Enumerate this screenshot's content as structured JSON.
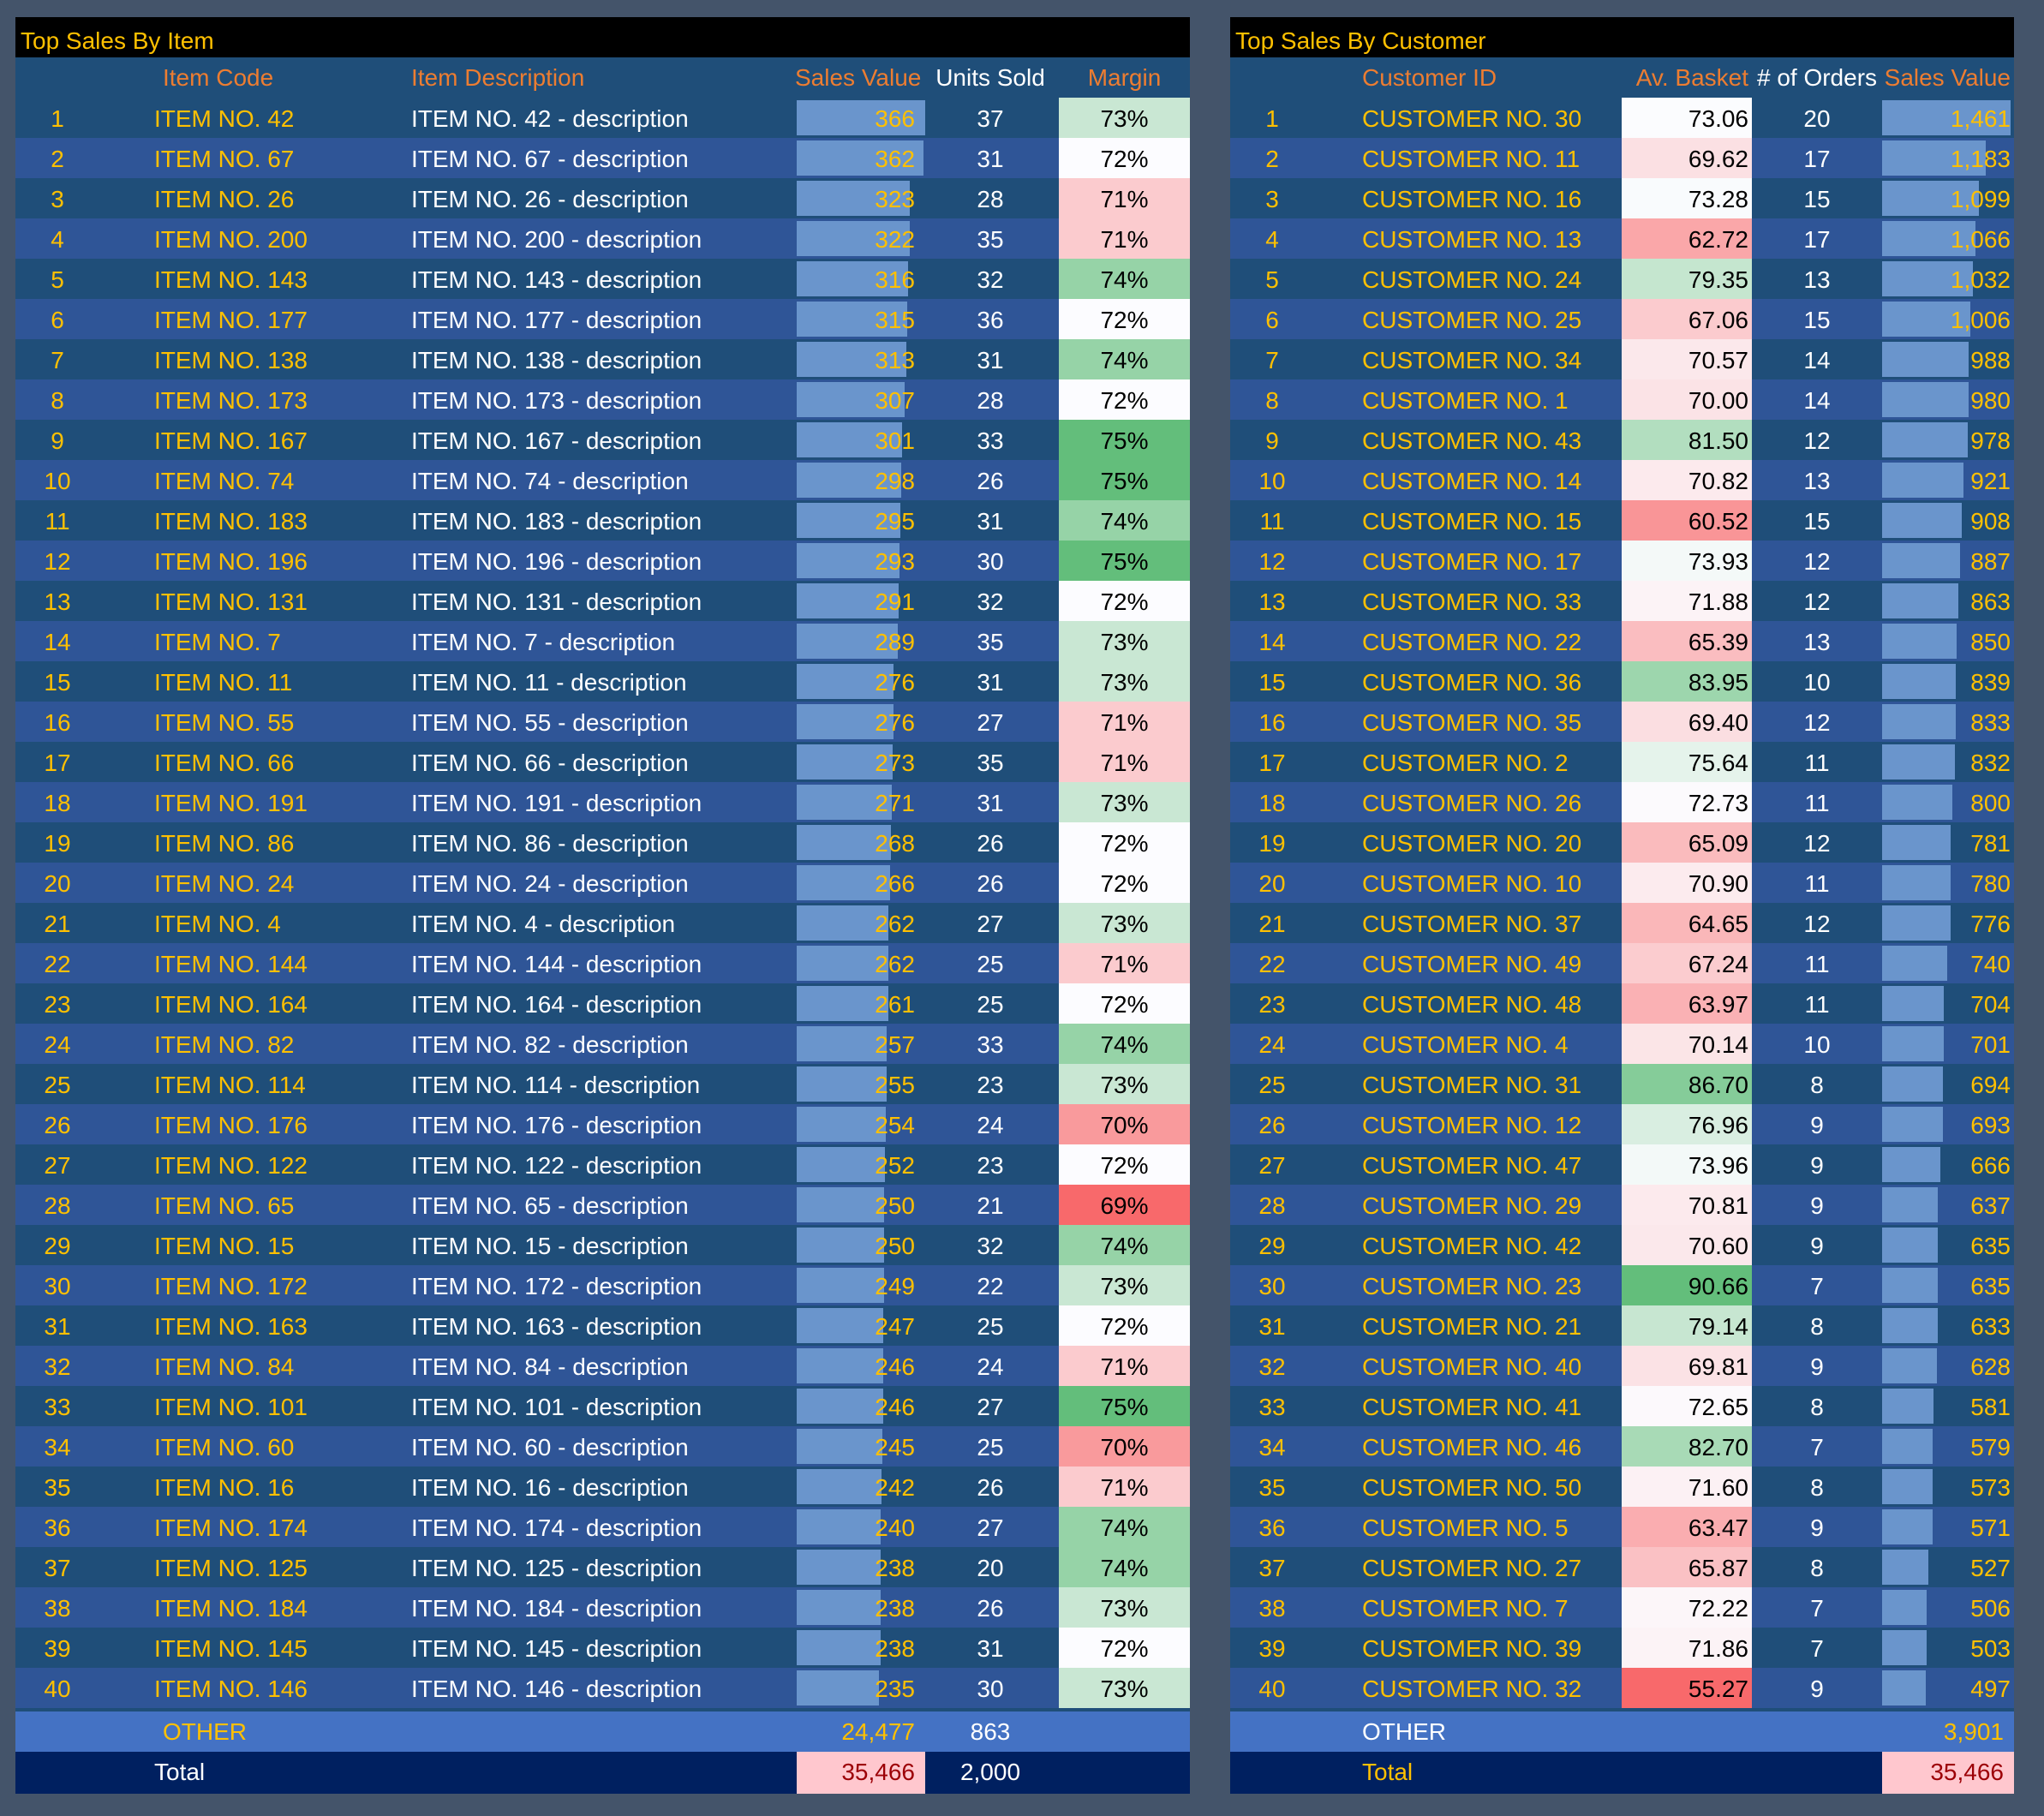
{
  "colors": {
    "background": "#44546a",
    "panel": "#1f4e79",
    "stripe": "#2f5597",
    "title_bar": "#000000",
    "title_text": "#ffc000",
    "header_text": "#ed7d31",
    "data_bar": "#6a95cc",
    "other_row": "#4472c4",
    "total_row": "#002060",
    "total_highlight": "#ffc7ce",
    "scale_low": "#f8696b",
    "scale_mid": "#fcfcff",
    "scale_high": "#63be7b"
  },
  "items_table": {
    "title": "Top Sales By Item",
    "columns": {
      "rank": "",
      "code": "Item Code",
      "description": "Item Description",
      "sales_value": "Sales Value",
      "units_sold": "Units Sold",
      "margin": "Margin"
    },
    "rows": [
      {
        "rank": "1",
        "code": "ITEM NO. 42",
        "description": "ITEM NO. 42 - description",
        "sales_value": "366",
        "units_sold": "37",
        "margin": "73%"
      },
      {
        "rank": "2",
        "code": "ITEM NO. 67",
        "description": "ITEM NO. 67 - description",
        "sales_value": "362",
        "units_sold": "31",
        "margin": "72%"
      },
      {
        "rank": "3",
        "code": "ITEM NO. 26",
        "description": "ITEM NO. 26 - description",
        "sales_value": "323",
        "units_sold": "28",
        "margin": "71%"
      },
      {
        "rank": "4",
        "code": "ITEM NO. 200",
        "description": "ITEM NO. 200 - description",
        "sales_value": "322",
        "units_sold": "35",
        "margin": "71%"
      },
      {
        "rank": "5",
        "code": "ITEM NO. 143",
        "description": "ITEM NO. 143 - description",
        "sales_value": "316",
        "units_sold": "32",
        "margin": "74%"
      },
      {
        "rank": "6",
        "code": "ITEM NO. 177",
        "description": "ITEM NO. 177 - description",
        "sales_value": "315",
        "units_sold": "36",
        "margin": "72%"
      },
      {
        "rank": "7",
        "code": "ITEM NO. 138",
        "description": "ITEM NO. 138 - description",
        "sales_value": "313",
        "units_sold": "31",
        "margin": "74%"
      },
      {
        "rank": "8",
        "code": "ITEM NO. 173",
        "description": "ITEM NO. 173 - description",
        "sales_value": "307",
        "units_sold": "28",
        "margin": "72%"
      },
      {
        "rank": "9",
        "code": "ITEM NO. 167",
        "description": "ITEM NO. 167 - description",
        "sales_value": "301",
        "units_sold": "33",
        "margin": "75%"
      },
      {
        "rank": "10",
        "code": "ITEM NO. 74",
        "description": "ITEM NO. 74 - description",
        "sales_value": "298",
        "units_sold": "26",
        "margin": "75%"
      },
      {
        "rank": "11",
        "code": "ITEM NO. 183",
        "description": "ITEM NO. 183 - description",
        "sales_value": "295",
        "units_sold": "31",
        "margin": "74%"
      },
      {
        "rank": "12",
        "code": "ITEM NO. 196",
        "description": "ITEM NO. 196 - description",
        "sales_value": "293",
        "units_sold": "30",
        "margin": "75%"
      },
      {
        "rank": "13",
        "code": "ITEM NO. 131",
        "description": "ITEM NO. 131 - description",
        "sales_value": "291",
        "units_sold": "32",
        "margin": "72%"
      },
      {
        "rank": "14",
        "code": "ITEM NO. 7",
        "description": "ITEM NO. 7 - description",
        "sales_value": "289",
        "units_sold": "35",
        "margin": "73%"
      },
      {
        "rank": "15",
        "code": "ITEM NO. 11",
        "description": "ITEM NO. 11 - description",
        "sales_value": "276",
        "units_sold": "31",
        "margin": "73%"
      },
      {
        "rank": "16",
        "code": "ITEM NO. 55",
        "description": "ITEM NO. 55 - description",
        "sales_value": "276",
        "units_sold": "27",
        "margin": "71%"
      },
      {
        "rank": "17",
        "code": "ITEM NO. 66",
        "description": "ITEM NO. 66 - description",
        "sales_value": "273",
        "units_sold": "35",
        "margin": "71%"
      },
      {
        "rank": "18",
        "code": "ITEM NO. 191",
        "description": "ITEM NO. 191 - description",
        "sales_value": "271",
        "units_sold": "31",
        "margin": "73%"
      },
      {
        "rank": "19",
        "code": "ITEM NO. 86",
        "description": "ITEM NO. 86 - description",
        "sales_value": "268",
        "units_sold": "26",
        "margin": "72%"
      },
      {
        "rank": "20",
        "code": "ITEM NO. 24",
        "description": "ITEM NO. 24 - description",
        "sales_value": "266",
        "units_sold": "26",
        "margin": "72%"
      },
      {
        "rank": "21",
        "code": "ITEM NO. 4",
        "description": "ITEM NO. 4 - description",
        "sales_value": "262",
        "units_sold": "27",
        "margin": "73%"
      },
      {
        "rank": "22",
        "code": "ITEM NO. 144",
        "description": "ITEM NO. 144 - description",
        "sales_value": "262",
        "units_sold": "25",
        "margin": "71%"
      },
      {
        "rank": "23",
        "code": "ITEM NO. 164",
        "description": "ITEM NO. 164 - description",
        "sales_value": "261",
        "units_sold": "25",
        "margin": "72%"
      },
      {
        "rank": "24",
        "code": "ITEM NO. 82",
        "description": "ITEM NO. 82 - description",
        "sales_value": "257",
        "units_sold": "33",
        "margin": "74%"
      },
      {
        "rank": "25",
        "code": "ITEM NO. 114",
        "description": "ITEM NO. 114 - description",
        "sales_value": "255",
        "units_sold": "23",
        "margin": "73%"
      },
      {
        "rank": "26",
        "code": "ITEM NO. 176",
        "description": "ITEM NO. 176 - description",
        "sales_value": "254",
        "units_sold": "24",
        "margin": "70%"
      },
      {
        "rank": "27",
        "code": "ITEM NO. 122",
        "description": "ITEM NO. 122 - description",
        "sales_value": "252",
        "units_sold": "23",
        "margin": "72%"
      },
      {
        "rank": "28",
        "code": "ITEM NO. 65",
        "description": "ITEM NO. 65 - description",
        "sales_value": "250",
        "units_sold": "21",
        "margin": "69%"
      },
      {
        "rank": "29",
        "code": "ITEM NO. 15",
        "description": "ITEM NO. 15 - description",
        "sales_value": "250",
        "units_sold": "32",
        "margin": "74%"
      },
      {
        "rank": "30",
        "code": "ITEM NO. 172",
        "description": "ITEM NO. 172 - description",
        "sales_value": "249",
        "units_sold": "22",
        "margin": "73%"
      },
      {
        "rank": "31",
        "code": "ITEM NO. 163",
        "description": "ITEM NO. 163 - description",
        "sales_value": "247",
        "units_sold": "25",
        "margin": "72%"
      },
      {
        "rank": "32",
        "code": "ITEM NO. 84",
        "description": "ITEM NO. 84 - description",
        "sales_value": "246",
        "units_sold": "24",
        "margin": "71%"
      },
      {
        "rank": "33",
        "code": "ITEM NO. 101",
        "description": "ITEM NO. 101 - description",
        "sales_value": "246",
        "units_sold": "27",
        "margin": "75%"
      },
      {
        "rank": "34",
        "code": "ITEM NO. 60",
        "description": "ITEM NO. 60 - description",
        "sales_value": "245",
        "units_sold": "25",
        "margin": "70%"
      },
      {
        "rank": "35",
        "code": "ITEM NO. 16",
        "description": "ITEM NO. 16 - description",
        "sales_value": "242",
        "units_sold": "26",
        "margin": "71%"
      },
      {
        "rank": "36",
        "code": "ITEM NO. 174",
        "description": "ITEM NO. 174 - description",
        "sales_value": "240",
        "units_sold": "27",
        "margin": "74%"
      },
      {
        "rank": "37",
        "code": "ITEM NO. 125",
        "description": "ITEM NO. 125 - description",
        "sales_value": "238",
        "units_sold": "20",
        "margin": "74%"
      },
      {
        "rank": "38",
        "code": "ITEM NO. 184",
        "description": "ITEM NO. 184 - description",
        "sales_value": "238",
        "units_sold": "26",
        "margin": "73%"
      },
      {
        "rank": "39",
        "code": "ITEM NO. 145",
        "description": "ITEM NO. 145 - description",
        "sales_value": "238",
        "units_sold": "31",
        "margin": "72%"
      },
      {
        "rank": "40",
        "code": "ITEM NO. 146",
        "description": "ITEM NO. 146 - description",
        "sales_value": "235",
        "units_sold": "30",
        "margin": "73%"
      }
    ],
    "other": {
      "label": "OTHER",
      "sales_value": "24,477",
      "units_sold": "863"
    },
    "total": {
      "label": "Total",
      "sales_value": "35,466",
      "units_sold": "2,000"
    }
  },
  "customers_table": {
    "title": "Top Sales By Customer",
    "columns": {
      "rank": "",
      "customer_id": "Customer ID",
      "av_basket": "Av. Basket",
      "orders": "# of Orders",
      "sales_value": "Sales Value"
    },
    "rows": [
      {
        "rank": "1",
        "customer_id": "CUSTOMER NO. 30",
        "av_basket": "73.06",
        "orders": "20",
        "sales_value": "1,461"
      },
      {
        "rank": "2",
        "customer_id": "CUSTOMER NO. 11",
        "av_basket": "69.62",
        "orders": "17",
        "sales_value": "1,183"
      },
      {
        "rank": "3",
        "customer_id": "CUSTOMER NO. 16",
        "av_basket": "73.28",
        "orders": "15",
        "sales_value": "1,099"
      },
      {
        "rank": "4",
        "customer_id": "CUSTOMER NO. 13",
        "av_basket": "62.72",
        "orders": "17",
        "sales_value": "1,066"
      },
      {
        "rank": "5",
        "customer_id": "CUSTOMER NO. 24",
        "av_basket": "79.35",
        "orders": "13",
        "sales_value": "1,032"
      },
      {
        "rank": "6",
        "customer_id": "CUSTOMER NO. 25",
        "av_basket": "67.06",
        "orders": "15",
        "sales_value": "1,006"
      },
      {
        "rank": "7",
        "customer_id": "CUSTOMER NO. 34",
        "av_basket": "70.57",
        "orders": "14",
        "sales_value": "988"
      },
      {
        "rank": "8",
        "customer_id": "CUSTOMER NO. 1",
        "av_basket": "70.00",
        "orders": "14",
        "sales_value": "980"
      },
      {
        "rank": "9",
        "customer_id": "CUSTOMER NO. 43",
        "av_basket": "81.50",
        "orders": "12",
        "sales_value": "978"
      },
      {
        "rank": "10",
        "customer_id": "CUSTOMER NO. 14",
        "av_basket": "70.82",
        "orders": "13",
        "sales_value": "921"
      },
      {
        "rank": "11",
        "customer_id": "CUSTOMER NO. 15",
        "av_basket": "60.52",
        "orders": "15",
        "sales_value": "908"
      },
      {
        "rank": "12",
        "customer_id": "CUSTOMER NO. 17",
        "av_basket": "73.93",
        "orders": "12",
        "sales_value": "887"
      },
      {
        "rank": "13",
        "customer_id": "CUSTOMER NO. 33",
        "av_basket": "71.88",
        "orders": "12",
        "sales_value": "863"
      },
      {
        "rank": "14",
        "customer_id": "CUSTOMER NO. 22",
        "av_basket": "65.39",
        "orders": "13",
        "sales_value": "850"
      },
      {
        "rank": "15",
        "customer_id": "CUSTOMER NO. 36",
        "av_basket": "83.95",
        "orders": "10",
        "sales_value": "839"
      },
      {
        "rank": "16",
        "customer_id": "CUSTOMER NO. 35",
        "av_basket": "69.40",
        "orders": "12",
        "sales_value": "833"
      },
      {
        "rank": "17",
        "customer_id": "CUSTOMER NO. 2",
        "av_basket": "75.64",
        "orders": "11",
        "sales_value": "832"
      },
      {
        "rank": "18",
        "customer_id": "CUSTOMER NO. 26",
        "av_basket": "72.73",
        "orders": "11",
        "sales_value": "800"
      },
      {
        "rank": "19",
        "customer_id": "CUSTOMER NO. 20",
        "av_basket": "65.09",
        "orders": "12",
        "sales_value": "781"
      },
      {
        "rank": "20",
        "customer_id": "CUSTOMER NO. 10",
        "av_basket": "70.90",
        "orders": "11",
        "sales_value": "780"
      },
      {
        "rank": "21",
        "customer_id": "CUSTOMER NO. 37",
        "av_basket": "64.65",
        "orders": "12",
        "sales_value": "776"
      },
      {
        "rank": "22",
        "customer_id": "CUSTOMER NO. 49",
        "av_basket": "67.24",
        "orders": "11",
        "sales_value": "740"
      },
      {
        "rank": "23",
        "customer_id": "CUSTOMER NO. 48",
        "av_basket": "63.97",
        "orders": "11",
        "sales_value": "704"
      },
      {
        "rank": "24",
        "customer_id": "CUSTOMER NO. 4",
        "av_basket": "70.14",
        "orders": "10",
        "sales_value": "701"
      },
      {
        "rank": "25",
        "customer_id": "CUSTOMER NO. 31",
        "av_basket": "86.70",
        "orders": "8",
        "sales_value": "694"
      },
      {
        "rank": "26",
        "customer_id": "CUSTOMER NO. 12",
        "av_basket": "76.96",
        "orders": "9",
        "sales_value": "693"
      },
      {
        "rank": "27",
        "customer_id": "CUSTOMER NO. 47",
        "av_basket": "73.96",
        "orders": "9",
        "sales_value": "666"
      },
      {
        "rank": "28",
        "customer_id": "CUSTOMER NO. 29",
        "av_basket": "70.81",
        "orders": "9",
        "sales_value": "637"
      },
      {
        "rank": "29",
        "customer_id": "CUSTOMER NO. 42",
        "av_basket": "70.60",
        "orders": "9",
        "sales_value": "635"
      },
      {
        "rank": "30",
        "customer_id": "CUSTOMER NO. 23",
        "av_basket": "90.66",
        "orders": "7",
        "sales_value": "635"
      },
      {
        "rank": "31",
        "customer_id": "CUSTOMER NO. 21",
        "av_basket": "79.14",
        "orders": "8",
        "sales_value": "633"
      },
      {
        "rank": "32",
        "customer_id": "CUSTOMER NO. 40",
        "av_basket": "69.81",
        "orders": "9",
        "sales_value": "628"
      },
      {
        "rank": "33",
        "customer_id": "CUSTOMER NO. 41",
        "av_basket": "72.65",
        "orders": "8",
        "sales_value": "581"
      },
      {
        "rank": "34",
        "customer_id": "CUSTOMER NO. 46",
        "av_basket": "82.70",
        "orders": "7",
        "sales_value": "579"
      },
      {
        "rank": "35",
        "customer_id": "CUSTOMER NO. 50",
        "av_basket": "71.60",
        "orders": "8",
        "sales_value": "573"
      },
      {
        "rank": "36",
        "customer_id": "CUSTOMER NO. 5",
        "av_basket": "63.47",
        "orders": "9",
        "sales_value": "571"
      },
      {
        "rank": "37",
        "customer_id": "CUSTOMER NO. 27",
        "av_basket": "65.87",
        "orders": "8",
        "sales_value": "527"
      },
      {
        "rank": "38",
        "customer_id": "CUSTOMER NO. 7",
        "av_basket": "72.22",
        "orders": "7",
        "sales_value": "506"
      },
      {
        "rank": "39",
        "customer_id": "CUSTOMER NO. 39",
        "av_basket": "71.86",
        "orders": "7",
        "sales_value": "503"
      },
      {
        "rank": "40",
        "customer_id": "CUSTOMER NO. 32",
        "av_basket": "55.27",
        "orders": "9",
        "sales_value": "497"
      }
    ],
    "other": {
      "label": "OTHER",
      "sales_value": "3,901"
    },
    "total": {
      "label": "Total",
      "sales_value": "35,466"
    }
  }
}
